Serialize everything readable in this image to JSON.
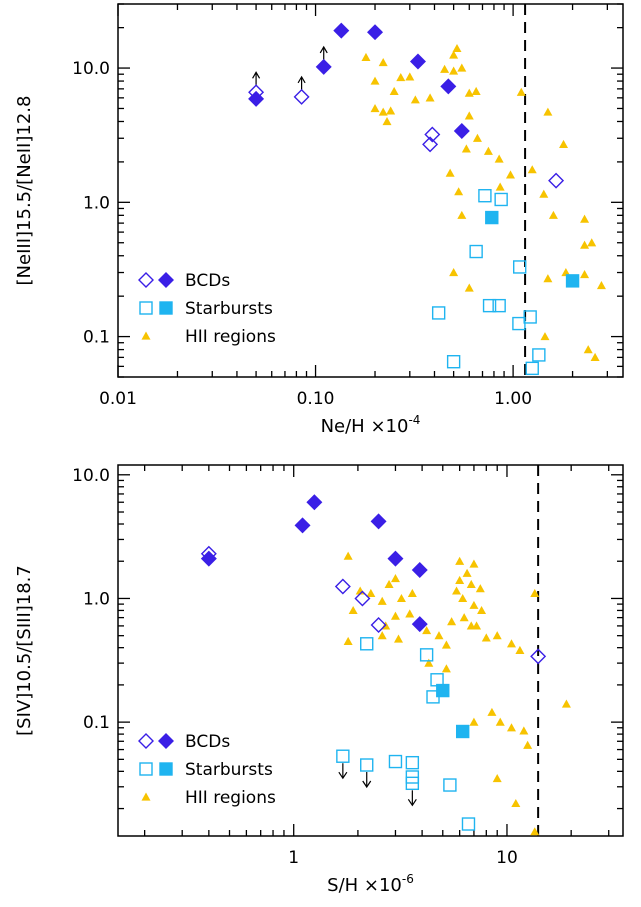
{
  "colors": {
    "bcd": "#3a1fe6",
    "starburst": "#1fb4f0",
    "hii": "#f7c300",
    "axis": "#000000"
  },
  "chart_data": [
    {
      "type": "scatter",
      "xscale": "log",
      "yscale": "log",
      "xlim": [
        0.01,
        3.6
      ],
      "ylim": [
        0.05,
        30
      ],
      "x_ticks": [
        0.01,
        0.1,
        1.0
      ],
      "x_tick_labels": [
        "0.01",
        "0.10",
        "1.00"
      ],
      "y_ticks": [
        0.1,
        1.0,
        10.0
      ],
      "y_tick_labels": [
        "0.1",
        "1.0",
        "10.0"
      ],
      "xlabel": "Ne/H ×10",
      "xlabel_exp": "-4",
      "ylabel": "[NeIII]15.5/[NeII]12.8",
      "vline_x": 1.15,
      "legend": {
        "position": "bottom-left",
        "entries": [
          {
            "label": "BCDs",
            "markers": [
              "diamond-open",
              "diamond-filled"
            ],
            "color": "bcd"
          },
          {
            "label": "Starbursts",
            "markers": [
              "square-open",
              "square-filled"
            ],
            "color": "starburst"
          },
          {
            "label": "HII regions",
            "markers": [
              "triangle-filled"
            ],
            "color": "hii"
          }
        ]
      },
      "series": [
        {
          "name": "BCDs",
          "marker": "diamond-open",
          "color": "bcd",
          "points": [
            [
              0.05,
              6.6
            ],
            [
              0.085,
              6.1
            ],
            [
              0.39,
              3.2
            ],
            [
              0.38,
              2.7
            ],
            [
              1.65,
              1.45
            ]
          ]
        },
        {
          "name": "BCDs",
          "marker": "diamond-filled",
          "color": "bcd",
          "points": [
            [
              0.05,
              5.9
            ],
            [
              0.11,
              10.2
            ],
            [
              0.135,
              19.0
            ],
            [
              0.2,
              18.5
            ],
            [
              0.33,
              11.2
            ],
            [
              0.47,
              7.3
            ],
            [
              0.55,
              3.4
            ]
          ]
        },
        {
          "name": "Starbursts",
          "marker": "square-open",
          "color": "starburst",
          "points": [
            [
              0.72,
              1.12
            ],
            [
              0.87,
              1.05
            ],
            [
              0.65,
              0.43
            ],
            [
              1.08,
              0.33
            ],
            [
              0.42,
              0.15
            ],
            [
              0.76,
              0.17
            ],
            [
              0.85,
              0.17
            ],
            [
              1.07,
              0.125
            ],
            [
              1.22,
              0.14
            ],
            [
              0.5,
              0.065
            ],
            [
              1.35,
              0.073
            ],
            [
              1.25,
              0.058
            ]
          ]
        },
        {
          "name": "Starbursts",
          "marker": "square-filled",
          "color": "starburst",
          "points": [
            [
              0.78,
              0.77
            ],
            [
              2.0,
              0.26
            ]
          ]
        },
        {
          "name": "HII regions",
          "marker": "triangle-filled",
          "color": "hii",
          "points": [
            [
              0.18,
              12.0
            ],
            [
              0.22,
              11.0
            ],
            [
              0.2,
              8.0
            ],
            [
              0.25,
              6.7
            ],
            [
              0.2,
              5.0
            ],
            [
              0.22,
              4.7
            ],
            [
              0.24,
              4.8
            ],
            [
              0.23,
              4.0
            ],
            [
              0.27,
              8.5
            ],
            [
              0.3,
              8.6
            ],
            [
              0.32,
              5.8
            ],
            [
              0.38,
              6.0
            ],
            [
              0.45,
              9.8
            ],
            [
              0.5,
              12.5
            ],
            [
              0.52,
              14.0
            ],
            [
              0.5,
              9.5
            ],
            [
              0.55,
              10.0
            ],
            [
              0.6,
              6.5
            ],
            [
              0.65,
              6.7
            ],
            [
              0.6,
              4.4
            ],
            [
              0.66,
              3.0
            ],
            [
              0.58,
              2.5
            ],
            [
              0.48,
              1.65
            ],
            [
              0.75,
              2.4
            ],
            [
              0.85,
              2.1
            ],
            [
              0.97,
              1.6
            ],
            [
              0.86,
              1.3
            ],
            [
              1.1,
              6.6
            ],
            [
              1.5,
              4.7
            ],
            [
              1.8,
              2.7
            ],
            [
              1.25,
              1.75
            ],
            [
              1.43,
              1.15
            ],
            [
              1.6,
              0.8
            ],
            [
              2.3,
              0.75
            ],
            [
              2.5,
              0.5
            ],
            [
              2.3,
              0.48
            ],
            [
              1.85,
              0.3
            ],
            [
              2.3,
              0.29
            ],
            [
              2.8,
              0.24
            ],
            [
              1.5,
              0.27
            ],
            [
              1.45,
              0.1
            ],
            [
              2.4,
              0.08
            ],
            [
              2.6,
              0.07
            ],
            [
              0.6,
              0.23
            ],
            [
              0.5,
              0.3
            ],
            [
              0.55,
              0.8
            ],
            [
              0.53,
              1.2
            ]
          ]
        }
      ]
    },
    {
      "type": "scatter",
      "xscale": "log",
      "yscale": "log",
      "xlim": [
        0.15,
        35
      ],
      "ylim": [
        0.012,
        12
      ],
      "x_ticks": [
        1,
        10
      ],
      "x_tick_labels": [
        "1",
        "10"
      ],
      "y_ticks": [
        0.1,
        1.0,
        10.0
      ],
      "y_tick_labels": [
        "0.1",
        "1.0",
        "10.0"
      ],
      "xlabel": "S/H ×10",
      "xlabel_exp": "-6",
      "ylabel": "[SIV]10.5/[SIII]18.7",
      "vline_x": 14.0,
      "legend": {
        "position": "bottom-left",
        "entries": [
          {
            "label": "BCDs",
            "markers": [
              "diamond-open",
              "diamond-filled"
            ],
            "color": "bcd"
          },
          {
            "label": "Starbursts",
            "markers": [
              "square-open",
              "square-filled"
            ],
            "color": "starburst"
          },
          {
            "label": "HII regions",
            "markers": [
              "triangle-filled"
            ],
            "color": "hii"
          }
        ]
      },
      "series": [
        {
          "name": "BCDs",
          "marker": "diamond-open",
          "color": "bcd",
          "points": [
            [
              0.4,
              2.3
            ],
            [
              1.7,
              1.25
            ],
            [
              2.1,
              1.0
            ],
            [
              2.5,
              0.61
            ],
            [
              14.0,
              0.34
            ]
          ]
        },
        {
          "name": "BCDs",
          "marker": "diamond-filled",
          "color": "bcd",
          "points": [
            [
              0.4,
              2.1
            ],
            [
              1.1,
              3.9
            ],
            [
              1.25,
              6.0
            ],
            [
              2.5,
              4.2
            ],
            [
              3.0,
              2.1
            ],
            [
              3.9,
              1.7
            ],
            [
              3.9,
              0.62
            ]
          ]
        },
        {
          "name": "Starbursts",
          "marker": "square-open",
          "color": "starburst",
          "points": [
            [
              2.2,
              0.43
            ],
            [
              4.2,
              0.35
            ],
            [
              4.7,
              0.22
            ],
            [
              4.5,
              0.16
            ],
            [
              1.7,
              0.053
            ],
            [
              2.2,
              0.045
            ],
            [
              3.0,
              0.048
            ],
            [
              3.6,
              0.047
            ],
            [
              3.6,
              0.036
            ],
            [
              3.6,
              0.032
            ],
            [
              5.4,
              0.031
            ],
            [
              6.6,
              0.015
            ]
          ]
        },
        {
          "name": "Starbursts",
          "marker": "square-filled",
          "color": "starburst",
          "points": [
            [
              5.0,
              0.18
            ],
            [
              6.2,
              0.084
            ]
          ]
        },
        {
          "name": "HII regions",
          "marker": "triangle-filled",
          "color": "hii",
          "points": [
            [
              1.8,
              2.2
            ],
            [
              2.05,
              1.15
            ],
            [
              1.9,
              0.8
            ],
            [
              2.3,
              1.1
            ],
            [
              2.6,
              0.95
            ],
            [
              2.8,
              1.3
            ],
            [
              3.0,
              1.45
            ],
            [
              3.2,
              1.0
            ],
            [
              3.6,
              1.1
            ],
            [
              3.0,
              0.72
            ],
            [
              2.7,
              0.6
            ],
            [
              3.5,
              0.75
            ],
            [
              1.8,
              0.45
            ],
            [
              2.6,
              0.5
            ],
            [
              3.1,
              0.47
            ],
            [
              4.2,
              0.55
            ],
            [
              4.8,
              0.5
            ],
            [
              5.2,
              0.42
            ],
            [
              4.3,
              0.3
            ],
            [
              5.2,
              0.27
            ],
            [
              6.0,
              2.0
            ],
            [
              6.5,
              1.6
            ],
            [
              7.0,
              1.9
            ],
            [
              6.0,
              1.4
            ],
            [
              6.8,
              1.3
            ],
            [
              7.5,
              1.2
            ],
            [
              5.8,
              1.15
            ],
            [
              6.2,
              1.0
            ],
            [
              7.0,
              0.88
            ],
            [
              7.6,
              0.8
            ],
            [
              6.3,
              0.7
            ],
            [
              7.2,
              0.6
            ],
            [
              8.0,
              0.48
            ],
            [
              9.0,
              0.5
            ],
            [
              10.5,
              0.43
            ],
            [
              11.5,
              0.38
            ],
            [
              13.5,
              1.1
            ],
            [
              6.8,
              0.6
            ],
            [
              5.5,
              0.65
            ],
            [
              7.0,
              0.1
            ],
            [
              8.5,
              0.12
            ],
            [
              9.3,
              0.1
            ],
            [
              10.5,
              0.09
            ],
            [
              12.0,
              0.085
            ],
            [
              12.5,
              0.065
            ],
            [
              19.0,
              0.14
            ],
            [
              9.0,
              0.035
            ],
            [
              13.5,
              0.013
            ],
            [
              11.0,
              0.022
            ]
          ]
        }
      ],
      "upper_limit_arrows_x": [
        1.7,
        2.2,
        3.6
      ]
    }
  ]
}
